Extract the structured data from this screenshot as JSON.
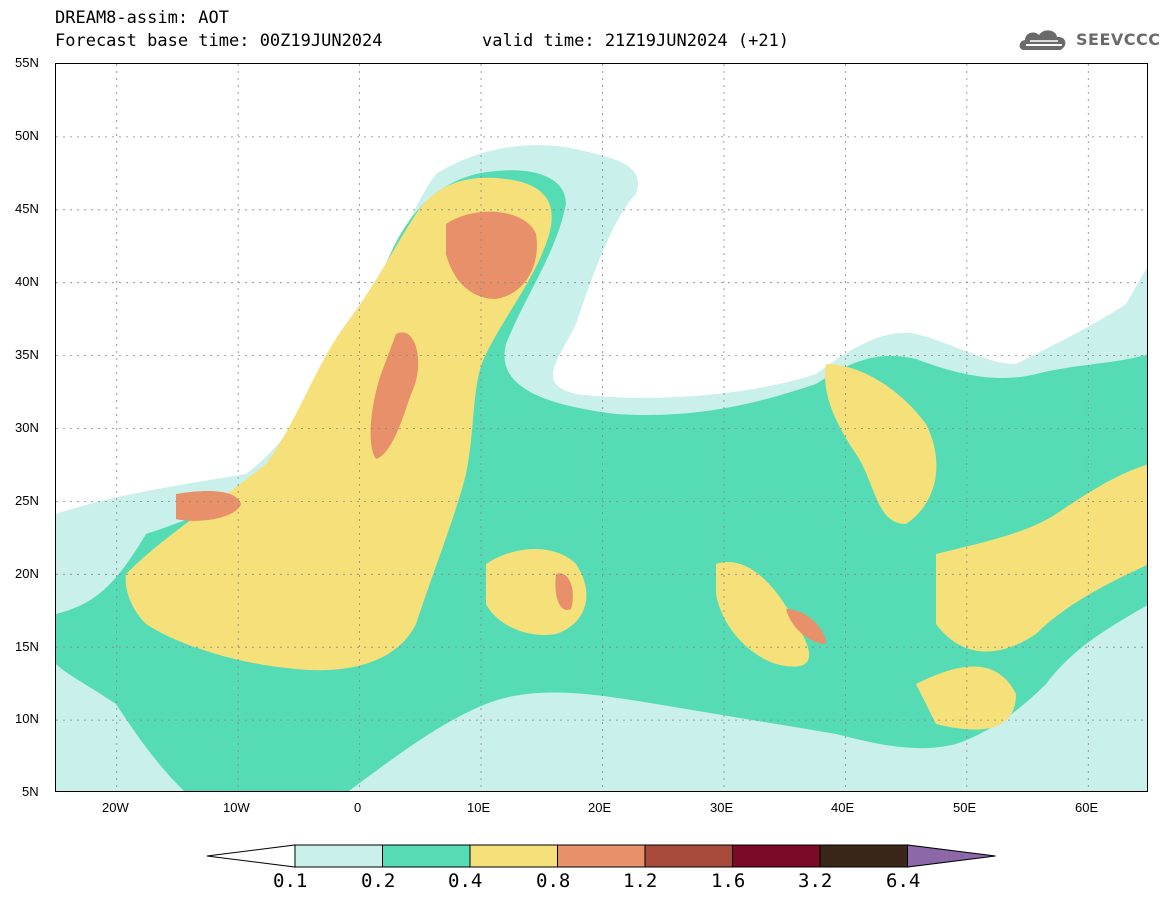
{
  "header": {
    "title_line1": "DREAM8-assim: AOT",
    "title_line2": "Forecast base time: 00Z19JUN2024",
    "valid_time": "valid time: 21Z19JUN2024 (+21)"
  },
  "logo": {
    "text": "SEEVCCC",
    "icon": "cloud-logo-icon",
    "color": "#6a6a6a"
  },
  "map": {
    "lat_labels": [
      "55N",
      "50N",
      "45N",
      "40N",
      "35N",
      "30N",
      "25N",
      "20N",
      "15N",
      "10N",
      "5N"
    ],
    "lon_labels": [
      "20W",
      "10W",
      "0",
      "10E",
      "20E",
      "30E",
      "40E",
      "50E",
      "60E"
    ],
    "lat_range": [
      5,
      55
    ],
    "lon_range": [
      -25,
      65
    ],
    "variable": "AOT"
  },
  "colorbar": {
    "labels": [
      "0.1",
      "0.2",
      "0.4",
      "0.8",
      "1.2",
      "1.6",
      "3.2",
      "6.4"
    ],
    "colors": [
      "#ffffff",
      "#c9f0ea",
      "#56dcb5",
      "#f5e07a",
      "#e8906a",
      "#a94b3c",
      "#7a0a28",
      "#3a2618",
      "#8c68a8"
    ]
  }
}
